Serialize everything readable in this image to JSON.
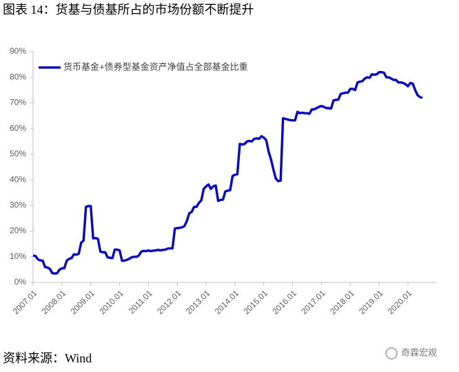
{
  "chart_data": {
    "type": "line",
    "title": "图表 14：货基与债基所占的市场份额不断提升",
    "categories": [
      "2007.01",
      null,
      null,
      null,
      null,
      null,
      null,
      null,
      null,
      null,
      null,
      null,
      "2008.01",
      null,
      null,
      null,
      null,
      null,
      null,
      null,
      null,
      null,
      null,
      null,
      "2009.01",
      null,
      null,
      null,
      null,
      null,
      null,
      null,
      null,
      null,
      null,
      null,
      "2010.01",
      null,
      null,
      null,
      null,
      null,
      null,
      null,
      null,
      null,
      null,
      null,
      "2011.01",
      null,
      null,
      null,
      null,
      null,
      null,
      null,
      null,
      null,
      null,
      null,
      "2012.01",
      null,
      null,
      null,
      null,
      null,
      null,
      null,
      null,
      null,
      null,
      null,
      "2013.01",
      null,
      null,
      null,
      null,
      null,
      null,
      null,
      null,
      null,
      null,
      null,
      "2014.01",
      null,
      null,
      null,
      null,
      null,
      null,
      null,
      null,
      null,
      null,
      null,
      "2015.01",
      null,
      null,
      null,
      null,
      null,
      null,
      null,
      null,
      null,
      null,
      null,
      "2016.01",
      null,
      null,
      null,
      null,
      null,
      null,
      null,
      null,
      null,
      null,
      null,
      "2017.01",
      null,
      null,
      null,
      null,
      null,
      null,
      null,
      null,
      null,
      null,
      null,
      "2018.01",
      null,
      null,
      null,
      null,
      null,
      null,
      null,
      null,
      null,
      null,
      null,
      "2019.01",
      null,
      null,
      null,
      null,
      null,
      null,
      null,
      null,
      null,
      null,
      null,
      "2020.01",
      null,
      null,
      null,
      null,
      null,
      null
    ],
    "series": [
      {
        "name": "货币基金+债券型基金资产净值占全部基金比重",
        "color": "#0a0ac0",
        "values": [
          10.5,
          10.3,
          9.0,
          8.6,
          8.5,
          6.0,
          5.8,
          5.3,
          3.6,
          3.5,
          3.6,
          5.0,
          5.5,
          5.6,
          8.5,
          9.2,
          9.5,
          11.0,
          10.8,
          11.2,
          15.5,
          16.3,
          29.5,
          29.8,
          29.8,
          17.2,
          17.3,
          17.0,
          12.0,
          11.8,
          11.8,
          9.8,
          9.6,
          9.5,
          12.8,
          12.8,
          12.5,
          8.5,
          8.5,
          8.8,
          9.2,
          9.8,
          10.0,
          10.0,
          10.5,
          12.0,
          12.3,
          12.2,
          12.5,
          12.2,
          12.4,
          12.5,
          12.7,
          12.5,
          12.7,
          12.8,
          13.2,
          13.3,
          13.3,
          21.0,
          21.2,
          21.3,
          21.5,
          22.0,
          24.0,
          27.0,
          27.5,
          29.5,
          29.5,
          31.0,
          32.0,
          36.5,
          37.5,
          38.2,
          36.5,
          37.5,
          37.8,
          31.8,
          32.2,
          32.3,
          35.5,
          35.8,
          36.0,
          41.5,
          42.0,
          42.2,
          54.0,
          53.8,
          54.0,
          55.0,
          55.2,
          55.0,
          56.0,
          56.2,
          56.0,
          57.0,
          56.5,
          55.5,
          51.0,
          48.0,
          44.0,
          40.5,
          39.5,
          39.7,
          64.0,
          63.8,
          63.5,
          63.3,
          63.2,
          63.2,
          66.5,
          66.0,
          66.2,
          66.0,
          66.0,
          65.8,
          67.5,
          67.5,
          68.0,
          68.5,
          68.8,
          68.5,
          68.0,
          68.0,
          67.8,
          71.0,
          71.2,
          71.3,
          73.5,
          73.8,
          74.0,
          74.0,
          75.5,
          75.5,
          75.0,
          78.0,
          78.3,
          78.5,
          79.5,
          80.0,
          79.8,
          81.2,
          81.0,
          81.2,
          82.0,
          82.0,
          81.8,
          80.0,
          80.0,
          79.5,
          79.0,
          79.0,
          78.0,
          78.0,
          77.8,
          77.3,
          76.5,
          77.8,
          77.5,
          75.0,
          73.0,
          72.3,
          72.0
        ]
      }
    ],
    "ylim": [
      0,
      90
    ],
    "yticks": [
      {
        "value": 0,
        "label": "0%"
      },
      {
        "value": 10,
        "label": "10%"
      },
      {
        "value": 20,
        "label": "20%"
      },
      {
        "value": 30,
        "label": "30%"
      },
      {
        "value": 40,
        "label": "40%"
      },
      {
        "value": 50,
        "label": "50%"
      },
      {
        "value": 60,
        "label": "60%"
      },
      {
        "value": 70,
        "label": "70%"
      },
      {
        "value": 80,
        "label": "80%"
      },
      {
        "value": 90,
        "label": "90%"
      }
    ],
    "grid": false,
    "legend": "upper-left"
  },
  "source": "资料来源：Wind",
  "watermark": "奇霖宏观"
}
